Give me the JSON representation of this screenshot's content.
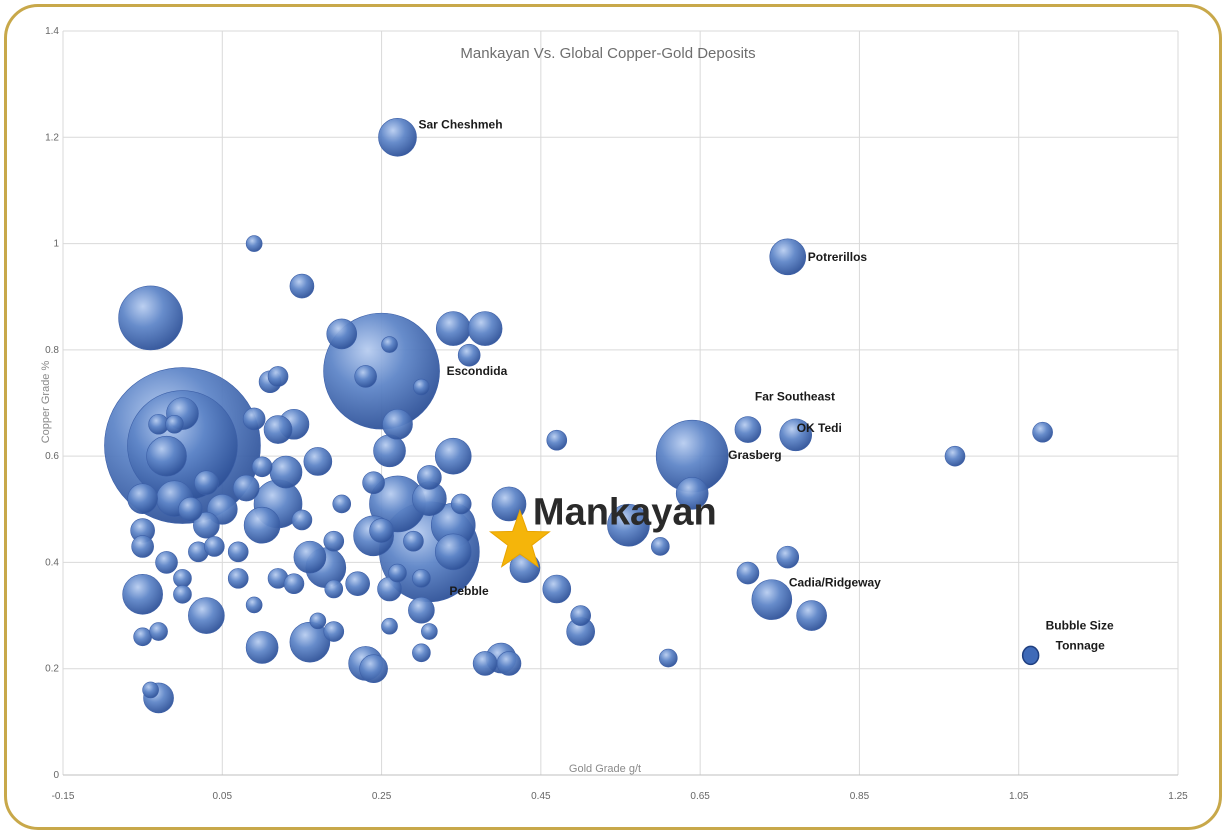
{
  "chart_data": {
    "type": "scatter",
    "variant": "bubble",
    "title": "Mankayan Vs. Global Copper-Gold Deposits",
    "xlabel": "Gold Grade g/t",
    "ylabel": "Copper Grade %",
    "xlim": [
      -0.15,
      1.25
    ],
    "ylim": [
      0,
      1.4
    ],
    "x_ticks": [
      "-0.15",
      "0.05",
      "0.25",
      "0.45",
      "0.65",
      "0.85",
      "1.05",
      "1.25"
    ],
    "y_ticks": [
      "0",
      "0.2",
      "0.4",
      "0.6",
      "0.8",
      "1",
      "1.2",
      "1.4"
    ],
    "grid": true,
    "bubble_color": "#4a6fb5",
    "highlight_color": "#f5b50a",
    "points": [
      {
        "x": 0.27,
        "y": 1.2,
        "r": 19,
        "label": "Sar Cheshmeh"
      },
      {
        "x": 0.76,
        "y": 0.975,
        "r": 18,
        "label": "Potrerillos"
      },
      {
        "x": 0.25,
        "y": 0.76,
        "r": 58,
        "label": "Escondida"
      },
      {
        "x": 0.71,
        "y": 0.65,
        "r": 13,
        "label": "Far Southeast"
      },
      {
        "x": 0.77,
        "y": 0.64,
        "r": 16,
        "label": "OK Tedi"
      },
      {
        "x": 0.64,
        "y": 0.6,
        "r": 36,
        "label": "Grasberg"
      },
      {
        "x": 0.74,
        "y": 0.33,
        "r": 20,
        "label": "Cadia/Ridgeway"
      },
      {
        "x": 0.31,
        "y": 0.42,
        "r": 50,
        "label": "Pebble"
      },
      {
        "x": 0.0,
        "y": 0.62,
        "r": 78
      },
      {
        "x": 0.0,
        "y": 0.62,
        "r": 55
      },
      {
        "x": -0.04,
        "y": 0.86,
        "r": 32
      },
      {
        "x": 0.09,
        "y": 1.0,
        "r": 8
      },
      {
        "x": 0.15,
        "y": 0.92,
        "r": 12
      },
      {
        "x": 0.2,
        "y": 0.83,
        "r": 15
      },
      {
        "x": 0.34,
        "y": 0.84,
        "r": 17
      },
      {
        "x": 0.38,
        "y": 0.84,
        "r": 17
      },
      {
        "x": 0.36,
        "y": 0.79,
        "r": 11
      },
      {
        "x": 0.26,
        "y": 0.81,
        "r": 8
      },
      {
        "x": 0.3,
        "y": 0.73,
        "r": 8
      },
      {
        "x": 0.23,
        "y": 0.75,
        "r": 11
      },
      {
        "x": 0.11,
        "y": 0.74,
        "r": 11
      },
      {
        "x": 0.12,
        "y": 0.75,
        "r": 10
      },
      {
        "x": 0.27,
        "y": 0.66,
        "r": 15
      },
      {
        "x": 0.26,
        "y": 0.61,
        "r": 16
      },
      {
        "x": 0.34,
        "y": 0.6,
        "r": 18
      },
      {
        "x": 0.47,
        "y": 0.63,
        "r": 10
      },
      {
        "x": 0.09,
        "y": 0.67,
        "r": 11
      },
      {
        "x": 0.12,
        "y": 0.65,
        "r": 14
      },
      {
        "x": 0.14,
        "y": 0.66,
        "r": 15
      },
      {
        "x": 0.0,
        "y": 0.68,
        "r": 16
      },
      {
        "x": -0.03,
        "y": 0.66,
        "r": 10
      },
      {
        "x": -0.01,
        "y": 0.66,
        "r": 9
      },
      {
        "x": -0.02,
        "y": 0.6,
        "r": 20
      },
      {
        "x": 0.1,
        "y": 0.58,
        "r": 10
      },
      {
        "x": 0.13,
        "y": 0.57,
        "r": 16
      },
      {
        "x": 0.17,
        "y": 0.59,
        "r": 14
      },
      {
        "x": 0.03,
        "y": 0.55,
        "r": 12
      },
      {
        "x": 0.08,
        "y": 0.54,
        "r": 13
      },
      {
        "x": 0.12,
        "y": 0.51,
        "r": 24
      },
      {
        "x": 0.1,
        "y": 0.47,
        "r": 18
      },
      {
        "x": 0.05,
        "y": 0.5,
        "r": 15
      },
      {
        "x": 0.03,
        "y": 0.47,
        "r": 13
      },
      {
        "x": 0.01,
        "y": 0.5,
        "r": 12
      },
      {
        "x": -0.01,
        "y": 0.52,
        "r": 18
      },
      {
        "x": -0.05,
        "y": 0.52,
        "r": 15
      },
      {
        "x": -0.05,
        "y": 0.46,
        "r": 12
      },
      {
        "x": -0.05,
        "y": 0.43,
        "r": 11
      },
      {
        "x": -0.02,
        "y": 0.4,
        "r": 11
      },
      {
        "x": 0.02,
        "y": 0.42,
        "r": 10
      },
      {
        "x": 0.04,
        "y": 0.43,
        "r": 10
      },
      {
        "x": 0.0,
        "y": 0.37,
        "r": 9
      },
      {
        "x": 0.0,
        "y": 0.34,
        "r": 9
      },
      {
        "x": -0.05,
        "y": 0.34,
        "r": 20
      },
      {
        "x": 0.07,
        "y": 0.42,
        "r": 10
      },
      {
        "x": 0.07,
        "y": 0.37,
        "r": 10
      },
      {
        "x": 0.09,
        "y": 0.32,
        "r": 8
      },
      {
        "x": 0.12,
        "y": 0.37,
        "r": 10
      },
      {
        "x": 0.14,
        "y": 0.36,
        "r": 10
      },
      {
        "x": 0.16,
        "y": 0.41,
        "r": 16
      },
      {
        "x": 0.18,
        "y": 0.39,
        "r": 20
      },
      {
        "x": 0.19,
        "y": 0.44,
        "r": 10
      },
      {
        "x": 0.2,
        "y": 0.51,
        "r": 9
      },
      {
        "x": 0.15,
        "y": 0.48,
        "r": 10
      },
      {
        "x": 0.24,
        "y": 0.55,
        "r": 11
      },
      {
        "x": 0.27,
        "y": 0.51,
        "r": 28
      },
      {
        "x": 0.31,
        "y": 0.56,
        "r": 12
      },
      {
        "x": 0.31,
        "y": 0.52,
        "r": 17
      },
      {
        "x": 0.24,
        "y": 0.45,
        "r": 20
      },
      {
        "x": 0.25,
        "y": 0.46,
        "r": 12
      },
      {
        "x": 0.29,
        "y": 0.44,
        "r": 10
      },
      {
        "x": 0.27,
        "y": 0.38,
        "r": 9
      },
      {
        "x": 0.22,
        "y": 0.36,
        "r": 12
      },
      {
        "x": 0.26,
        "y": 0.35,
        "r": 12
      },
      {
        "x": 0.3,
        "y": 0.37,
        "r": 9
      },
      {
        "x": 0.3,
        "y": 0.31,
        "r": 13
      },
      {
        "x": 0.31,
        "y": 0.27,
        "r": 8
      },
      {
        "x": 0.26,
        "y": 0.28,
        "r": 8
      },
      {
        "x": 0.19,
        "y": 0.35,
        "r": 9
      },
      {
        "x": 0.17,
        "y": 0.29,
        "r": 8
      },
      {
        "x": 0.19,
        "y": 0.27,
        "r": 10
      },
      {
        "x": 0.16,
        "y": 0.25,
        "r": 20
      },
      {
        "x": 0.1,
        "y": 0.24,
        "r": 16
      },
      {
        "x": 0.03,
        "y": 0.3,
        "r": 18
      },
      {
        "x": -0.05,
        "y": 0.26,
        "r": 9
      },
      {
        "x": -0.03,
        "y": 0.27,
        "r": 9
      },
      {
        "x": -0.04,
        "y": 0.16,
        "r": 8
      },
      {
        "x": -0.03,
        "y": 0.145,
        "r": 15
      },
      {
        "x": 0.23,
        "y": 0.21,
        "r": 17
      },
      {
        "x": 0.24,
        "y": 0.2,
        "r": 14
      },
      {
        "x": 0.3,
        "y": 0.23,
        "r": 9
      },
      {
        "x": 0.4,
        "y": 0.22,
        "r": 15
      },
      {
        "x": 0.41,
        "y": 0.21,
        "r": 12
      },
      {
        "x": 0.38,
        "y": 0.21,
        "r": 12
      },
      {
        "x": 0.34,
        "y": 0.47,
        "r": 22
      },
      {
        "x": 0.34,
        "y": 0.42,
        "r": 18
      },
      {
        "x": 0.35,
        "y": 0.51,
        "r": 10
      },
      {
        "x": 0.41,
        "y": 0.51,
        "r": 17
      },
      {
        "x": 0.43,
        "y": 0.39,
        "r": 15
      },
      {
        "x": 0.47,
        "y": 0.35,
        "r": 14
      },
      {
        "x": 0.5,
        "y": 0.3,
        "r": 10
      },
      {
        "x": 0.5,
        "y": 0.27,
        "r": 14
      },
      {
        "x": 0.56,
        "y": 0.47,
        "r": 21
      },
      {
        "x": 0.6,
        "y": 0.43,
        "r": 9
      },
      {
        "x": 0.64,
        "y": 0.53,
        "r": 16
      },
      {
        "x": 0.61,
        "y": 0.22,
        "r": 9
      },
      {
        "x": 0.71,
        "y": 0.38,
        "r": 11
      },
      {
        "x": 0.76,
        "y": 0.41,
        "r": 11
      },
      {
        "x": 0.79,
        "y": 0.3,
        "r": 15
      },
      {
        "x": 0.97,
        "y": 0.6,
        "r": 10
      },
      {
        "x": 1.08,
        "y": 0.645,
        "r": 10
      }
    ],
    "highlight": {
      "x": 0.43,
      "y": 0.43,
      "label": "Mankayan",
      "marker": "star"
    },
    "legend": {
      "x": 1.07,
      "y": 0.225,
      "r": 8,
      "label_line1": "Bubble Size",
      "label_line2": "Tonnage"
    }
  }
}
